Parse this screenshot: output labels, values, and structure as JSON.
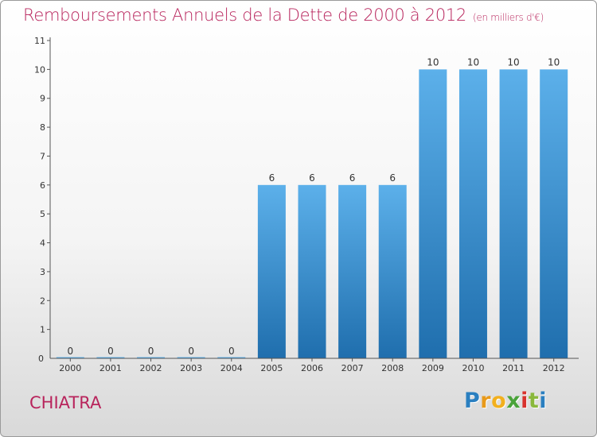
{
  "title": "Remboursements Annuels de la Dette de 2000 à 2012",
  "subtitle": "(en milliers d'€)",
  "place": "CHIATRA",
  "logo_letters": [
    "P",
    "r",
    "o",
    "x",
    "i",
    "t",
    "i"
  ],
  "colors": {
    "title": "#b8245c",
    "bar_top": "#5cb0ea",
    "bar_bottom": "#1f6ead",
    "axis": "#555555"
  },
  "chart_data": {
    "type": "bar",
    "title": "Remboursements Annuels de la Dette de 2000 à 2012",
    "subtitle": "(en milliers d'€)",
    "xlabel": "",
    "ylabel": "",
    "categories": [
      "2000",
      "2001",
      "2002",
      "2003",
      "2004",
      "2005",
      "2006",
      "2007",
      "2008",
      "2009",
      "2010",
      "2011",
      "2012"
    ],
    "values": [
      0,
      0,
      0,
      0,
      0,
      6,
      6,
      6,
      6,
      10,
      10,
      10,
      10
    ],
    "value_labels": [
      "0",
      "0",
      "0",
      "0",
      "0",
      "6",
      "6",
      "6",
      "6",
      "10",
      "10",
      "10",
      "10"
    ],
    "ylim": [
      0,
      11
    ],
    "yticks": [
      "1",
      "2",
      "3",
      "4",
      "5",
      "6",
      "7",
      "8",
      "9",
      "10",
      "11"
    ],
    "grid": false,
    "legend": "none"
  }
}
